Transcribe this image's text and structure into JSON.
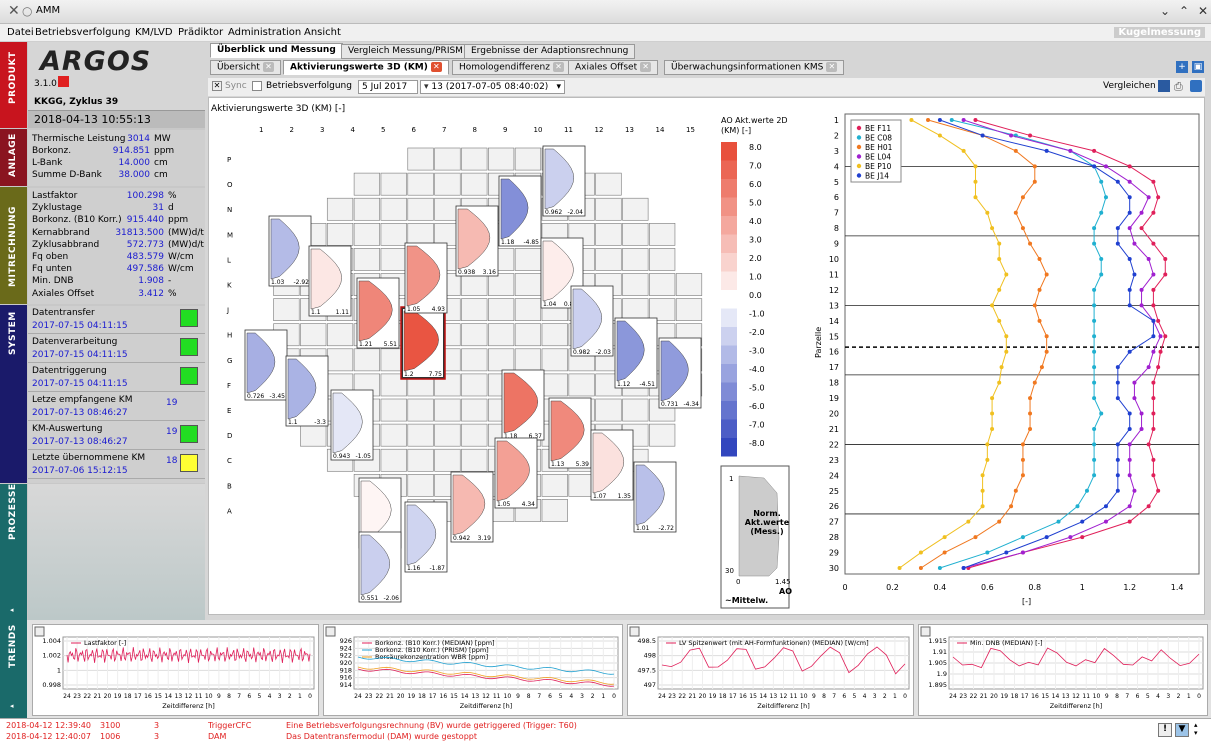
{
  "window": {
    "title": "AMM",
    "badge": "Kugelmessung"
  },
  "menu": [
    "Datei",
    "Betriebsverfolgung",
    "KM/LVD",
    "Prädiktor",
    "Administration",
    "Ansicht"
  ],
  "product": {
    "logo": "ARGOS",
    "version": "3.1.0",
    "plant": "KKGG, Zyklus 39",
    "datetime": "2018-04-13 10:55:13"
  },
  "sections": {
    "produkt": "PRODUKT",
    "anlage": "ANLAGE",
    "mitrechnung": "MITRECHNUNG",
    "system": "SYSTEM",
    "prozesse": "PROZESSE",
    "trends": "TRENDS"
  },
  "anlage": [
    {
      "label": "Thermische Leistung",
      "value": "3014",
      "unit": "MW"
    },
    {
      "label": "Borkonz.",
      "value": "914.851",
      "unit": "ppm"
    },
    {
      "label": "L-Bank",
      "value": "14.000",
      "unit": "cm"
    },
    {
      "label": "Summe D-Bank",
      "value": "38.000",
      "unit": "cm"
    }
  ],
  "mitrechnung": [
    {
      "label": "Lastfaktor",
      "value": "100.298",
      "unit": "%"
    },
    {
      "label": "Zyklustage",
      "value": "31",
      "unit": "d"
    },
    {
      "label": "Borkonz. (B10 Korr.)",
      "value": "915.440",
      "unit": "ppm"
    },
    {
      "label": "Kernabbrand",
      "value": "31813.500",
      "unit": "(MW)d/t"
    },
    {
      "label": "Zyklusabbrand",
      "value": "572.773",
      "unit": "(MW)d/t"
    },
    {
      "label": "Fq oben",
      "value": "483.579",
      "unit": "W/cm"
    },
    {
      "label": "Fq unten",
      "value": "497.586",
      "unit": "W/cm"
    },
    {
      "label": "Min. DNB",
      "value": "1.908",
      "unit": "-"
    },
    {
      "label": "Axiales Offset",
      "value": "3.412",
      "unit": "%"
    }
  ],
  "system": [
    {
      "label": "Datentransfer",
      "time": "2017-07-15 04:11:15",
      "count": "",
      "color": "#22dd22"
    },
    {
      "label": "Datenverarbeitung",
      "time": "2017-07-15 04:11:15",
      "count": "",
      "color": "#22dd22"
    },
    {
      "label": "Datentriggerung",
      "time": "2017-07-15 04:11:15",
      "count": "",
      "color": "#22dd22"
    },
    {
      "label": "Letze empfangene KM",
      "time": "2017-07-13 08:46:27",
      "count": "19",
      "color": ""
    },
    {
      "label": "KM-Auswertung",
      "time": "2017-07-13 08:46:27",
      "count": "19",
      "color": "#22dd22"
    },
    {
      "label": "Letzte übernommene KM",
      "time": "2017-07-06 15:12:15",
      "count": "18",
      "color": "#ffff33"
    }
  ],
  "tabs_top": [
    "Überblick und Messung",
    "Vergleich Messung/PRISM",
    "Ergebnisse der Adaptionsrechnung"
  ],
  "tabs_sub": [
    "Übersicht",
    "Aktivierungswerte 3D (KM)",
    "Homologendifferenz",
    "Axiales Offset",
    "Überwachungsinformationen KMS"
  ],
  "toolbar": {
    "sync": "Sync",
    "betrieb": "Betriebsverfolgung",
    "date": "5 Jul 2017",
    "measure": "13 (2017-07-05 08:40:02)",
    "compare": "Vergleichen"
  },
  "map": {
    "title": "Aktivierungswerte 3D (KM) [-]",
    "cols": [
      "1",
      "2",
      "3",
      "4",
      "5",
      "6",
      "7",
      "8",
      "9",
      "10",
      "11",
      "12",
      "13",
      "14",
      "15"
    ],
    "rows": [
      "P",
      "O",
      "N",
      "M",
      "L",
      "K",
      "J",
      "H",
      "G",
      "F",
      "E",
      "D",
      "C",
      "B",
      "A"
    ]
  },
  "legend": {
    "title": "AO Akt.werte 2D\n(KM) [-]",
    "ticks": [
      "8.0",
      "7.0",
      "6.0",
      "5.0",
      "4.0",
      "3.0",
      "2.0",
      "1.0",
      "0.0",
      "-1.0",
      "-2.0",
      "-3.0",
      "-4.0",
      "-5.0",
      "-6.0",
      "-7.0",
      "-8.0"
    ]
  },
  "mini": {
    "label": "Norm.\nAkt.werte\n(Mess.)",
    "top": "1",
    "bottom": "30",
    "x0": "0",
    "x1": "1.45",
    "ao": "AO",
    "mittel": "~Mittelw."
  },
  "profiles": [
    {
      "v1": "1.03",
      "v2": "-2.92"
    },
    {
      "v1": "1.1",
      "v2": "1.11"
    },
    {
      "v1": "1.21",
      "v2": "5.51"
    },
    {
      "v1": "1.2",
      "v2": "7.75"
    },
    {
      "v1": "1.05",
      "v2": "4.93"
    },
    {
      "v1": "0.938",
      "v2": "3.16"
    },
    {
      "v1": "1.18",
      "v2": "-4.85"
    },
    {
      "v1": "0.962",
      "v2": "-2.04"
    },
    {
      "v1": "1.04",
      "v2": "0.828"
    },
    {
      "v1": "0.982",
      "v2": "-2.03"
    },
    {
      "v1": "1.12",
      "v2": "-4.51"
    },
    {
      "v1": "0.731",
      "v2": "-4.34"
    },
    {
      "v1": "0.726",
      "v2": "-3.45"
    },
    {
      "v1": "1.1",
      "v2": "-3.3"
    },
    {
      "v1": "0.943",
      "v2": "-1.05"
    },
    {
      "v1": "1.18",
      "v2": "6.37"
    },
    {
      "v1": "1.13",
      "v2": "5.39"
    },
    {
      "v1": "1.07",
      "v2": "1.35"
    },
    {
      "v1": "1.01",
      "v2": "-2.72"
    },
    {
      "v1": "1.05",
      "v2": "4.34"
    },
    {
      "v1": "0.942",
      "v2": "3.19"
    },
    {
      "v1": "0.99",
      "v2": "0.44"
    },
    {
      "v1": "1.16",
      "v2": "-1.87"
    },
    {
      "v1": "0.551",
      "v2": "-2.06"
    }
  ],
  "chart_data": [
    {
      "type": "line",
      "title": "",
      "xlabel": "[-]",
      "ylabel": "Parzelle",
      "xlim": [
        0,
        1.45
      ],
      "ylim": [
        1,
        30
      ],
      "y": [
        1,
        2,
        3,
        4,
        5,
        6,
        7,
        8,
        9,
        10,
        11,
        12,
        13,
        14,
        15,
        16,
        17,
        18,
        19,
        20,
        21,
        22,
        23,
        24,
        25,
        26,
        27,
        28,
        29,
        30
      ],
      "series": [
        {
          "name": "BE F11",
          "color": "#e0205a",
          "values": [
            0.55,
            0.78,
            1.05,
            1.2,
            1.3,
            1.32,
            1.3,
            1.25,
            1.3,
            1.35,
            1.35,
            1.3,
            1.3,
            1.32,
            1.35,
            1.33,
            1.32,
            1.3,
            1.3,
            1.3,
            1.3,
            1.28,
            1.3,
            1.3,
            1.32,
            1.28,
            1.2,
            1.0,
            0.75,
            0.52
          ]
        },
        {
          "name": "BE C08",
          "color": "#20b0d0",
          "values": [
            0.45,
            0.72,
            0.95,
            1.05,
            1.08,
            1.1,
            1.08,
            1.05,
            1.05,
            1.08,
            1.08,
            1.05,
            1.05,
            1.05,
            1.05,
            1.05,
            1.05,
            1.05,
            1.05,
            1.08,
            1.05,
            1.05,
            1.05,
            1.05,
            1.02,
            0.98,
            0.9,
            0.75,
            0.6,
            0.4
          ]
        },
        {
          "name": "BE H01",
          "color": "#f07820",
          "values": [
            0.35,
            0.58,
            0.72,
            0.8,
            0.8,
            0.75,
            0.72,
            0.75,
            0.78,
            0.82,
            0.85,
            0.82,
            0.8,
            0.82,
            0.85,
            0.85,
            0.83,
            0.8,
            0.78,
            0.78,
            0.78,
            0.75,
            0.75,
            0.75,
            0.72,
            0.7,
            0.65,
            0.55,
            0.42,
            0.32
          ]
        },
        {
          "name": "BE L04",
          "color": "#a020d0",
          "values": [
            0.5,
            0.7,
            0.95,
            1.1,
            1.2,
            1.28,
            1.25,
            1.2,
            1.22,
            1.28,
            1.3,
            1.25,
            1.25,
            1.3,
            1.33,
            1.3,
            1.28,
            1.22,
            1.22,
            1.25,
            1.25,
            1.2,
            1.2,
            1.2,
            1.22,
            1.2,
            1.1,
            0.95,
            0.75,
            0.5
          ]
        },
        {
          "name": "BE P10",
          "color": "#f0c020",
          "values": [
            0.28,
            0.4,
            0.5,
            0.55,
            0.55,
            0.55,
            0.6,
            0.62,
            0.65,
            0.65,
            0.68,
            0.65,
            0.62,
            0.65,
            0.68,
            0.68,
            0.66,
            0.65,
            0.62,
            0.62,
            0.62,
            0.6,
            0.6,
            0.58,
            0.58,
            0.58,
            0.52,
            0.42,
            0.32,
            0.23
          ]
        },
        {
          "name": "BE J14",
          "color": "#2040d0",
          "values": [
            0.4,
            0.58,
            0.85,
            1.05,
            1.15,
            1.2,
            1.2,
            1.15,
            1.15,
            1.2,
            1.22,
            1.2,
            1.2,
            1.3,
            1.3,
            1.2,
            1.15,
            1.15,
            1.15,
            1.2,
            1.2,
            1.15,
            1.15,
            1.15,
            1.15,
            1.1,
            1.0,
            0.85,
            0.68,
            0.5
          ]
        }
      ]
    }
  ],
  "trends": [
    {
      "legend": [
        "Lastfaktor [-]"
      ],
      "colors": [
        "#e0205a"
      ],
      "yticks": [
        "1.004",
        "1.002",
        "1",
        "0.998"
      ],
      "xlabel": "Zeitdifferenz [h]"
    },
    {
      "legend": [
        "Borkonz. (B10 Korr.) (MEDIAN) [ppm]",
        "Borkonz. (B10 Korr.) (PRISM) [ppm]",
        "Borsäurekonzentration WBR [ppm]"
      ],
      "colors": [
        "#e0205a",
        "#20a0d0",
        "#f0a020"
      ],
      "yticks": [
        "926",
        "924",
        "922",
        "920",
        "918",
        "916",
        "914"
      ],
      "xlabel": "Zeitdifferenz [h]"
    },
    {
      "legend": [
        "LV Spitzenwert (mit AH-Formfunktionen) (MEDIAN) [W/cm]"
      ],
      "colors": [
        "#e0205a"
      ],
      "yticks": [
        "498.5",
        "498",
        "497.5",
        "497"
      ],
      "xlabel": "Zeitdifferenz [h]"
    },
    {
      "legend": [
        "Min. DNB (MEDIAN) [-]"
      ],
      "colors": [
        "#e0205a"
      ],
      "yticks": [
        "1.915",
        "1.91",
        "1.905",
        "1.9",
        "1.895"
      ],
      "xlabel": "Zeitdifferenz [h]"
    }
  ],
  "trend_x": [
    "24",
    "23",
    "22",
    "21",
    "20",
    "19",
    "18",
    "17",
    "16",
    "15",
    "14",
    "13",
    "12",
    "11",
    "10",
    "9",
    "8",
    "7",
    "6",
    "5",
    "4",
    "3",
    "2",
    "1",
    "0"
  ],
  "status_lines": [
    {
      "time": "2018-04-12 12:39:40",
      "code": "3100",
      "n": "3",
      "src": "TriggerCFC",
      "msg": "Eine Betriebsverfolgungsrechnung (BV) wurde getriggered (Trigger: T60)"
    },
    {
      "time": "2018-04-12 12:40:07",
      "code": "1006",
      "n": "3",
      "src": "DAM",
      "msg": "Das Datentransfermodul (DAM) wurde gestoppt"
    }
  ]
}
